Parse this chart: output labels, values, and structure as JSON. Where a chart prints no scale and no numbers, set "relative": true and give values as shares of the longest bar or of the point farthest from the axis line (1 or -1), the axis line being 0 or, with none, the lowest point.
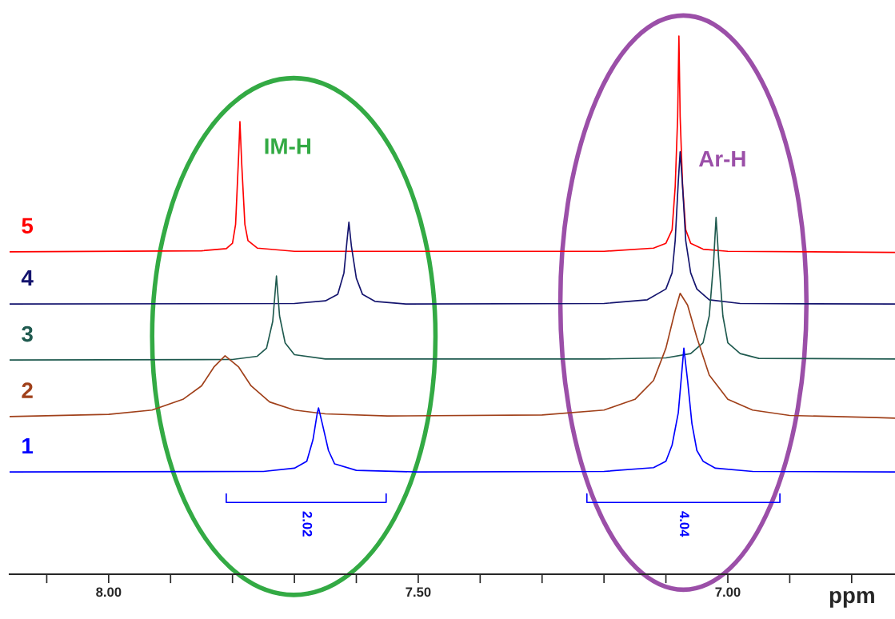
{
  "chart_data": {
    "type": "line",
    "relative": true,
    "xlabel": "ppm",
    "xlim": [
      8.16,
      6.73
    ],
    "xticks": [
      {
        "value": 8.1,
        "label": null
      },
      {
        "value": 8.0,
        "label": "8.00"
      },
      {
        "value": 7.9,
        "label": null
      },
      {
        "value": 7.8,
        "label": null
      },
      {
        "value": 7.7,
        "label": null
      },
      {
        "value": 7.6,
        "label": null
      },
      {
        "value": 7.5,
        "label": "7.50"
      },
      {
        "value": 7.4,
        "label": null
      },
      {
        "value": 7.3,
        "label": null
      },
      {
        "value": 7.2,
        "label": null
      },
      {
        "value": 7.1,
        "label": null
      },
      {
        "value": 7.0,
        "label": "7.00"
      },
      {
        "value": 6.9,
        "label": null
      },
      {
        "value": 6.8,
        "label": null
      }
    ],
    "tick_labels": "x",
    "grid": false,
    "legend": false,
    "marker": "none",
    "line_style": "solid",
    "annotations": [
      "IM-H",
      "Ar-H",
      "2.02",
      "4.04"
    ],
    "series": [
      {
        "name": "5",
        "color": "#ff0000",
        "x": [
          8.16,
          7.85,
          7.81,
          7.8,
          7.795,
          7.79,
          7.788,
          7.785,
          7.78,
          7.775,
          7.76,
          7.7,
          7.2,
          7.12,
          7.1,
          7.09,
          7.085,
          7.081,
          7.079,
          7.077,
          7.073,
          7.068,
          7.06,
          7.04,
          7.0,
          6.73
        ],
        "values": [
          0.599,
          0.601,
          0.605,
          0.615,
          0.65,
          0.78,
          0.841,
          0.76,
          0.65,
          0.62,
          0.606,
          0.6,
          0.6,
          0.606,
          0.615,
          0.64,
          0.72,
          0.85,
          1.0,
          0.85,
          0.72,
          0.64,
          0.615,
          0.604,
          0.6,
          0.598
        ]
      },
      {
        "name": "4",
        "color": "#14146e",
        "x": [
          8.16,
          7.7,
          7.65,
          7.63,
          7.62,
          7.615,
          7.612,
          7.608,
          7.6,
          7.59,
          7.57,
          7.52,
          7.2,
          7.13,
          7.1,
          7.09,
          7.085,
          7.08,
          7.077,
          7.073,
          7.068,
          7.06,
          7.05,
          7.03,
          6.98,
          6.73
        ],
        "values": [
          0.502,
          0.503,
          0.508,
          0.52,
          0.56,
          0.62,
          0.654,
          0.61,
          0.55,
          0.52,
          0.507,
          0.502,
          0.503,
          0.51,
          0.53,
          0.56,
          0.62,
          0.73,
          0.785,
          0.72,
          0.62,
          0.56,
          0.53,
          0.51,
          0.503,
          0.502
        ]
      },
      {
        "name": "3",
        "color": "#1f5a4f",
        "x": [
          8.16,
          7.8,
          7.76,
          7.745,
          7.735,
          7.729,
          7.724,
          7.715,
          7.7,
          7.65,
          7.2,
          7.1,
          7.06,
          7.04,
          7.03,
          7.023,
          7.019,
          7.015,
          7.008,
          7.0,
          6.98,
          6.95,
          6.73
        ],
        "values": [
          0.398,
          0.399,
          0.405,
          0.42,
          0.47,
          0.554,
          0.48,
          0.43,
          0.408,
          0.4,
          0.4,
          0.402,
          0.41,
          0.43,
          0.48,
          0.58,
          0.663,
          0.59,
          0.48,
          0.43,
          0.41,
          0.401,
          0.4
        ]
      },
      {
        "name": "2",
        "color": "#a0401a",
        "x": [
          8.16,
          8.0,
          7.93,
          7.88,
          7.85,
          7.83,
          7.812,
          7.79,
          7.77,
          7.74,
          7.7,
          7.65,
          7.55,
          7.3,
          7.2,
          7.15,
          7.12,
          7.1,
          7.085,
          7.077,
          7.065,
          7.05,
          7.03,
          7.0,
          6.96,
          6.9,
          6.76,
          6.73
        ],
        "values": [
          0.293,
          0.297,
          0.305,
          0.325,
          0.35,
          0.385,
          0.406,
          0.385,
          0.35,
          0.32,
          0.305,
          0.298,
          0.294,
          0.296,
          0.305,
          0.325,
          0.36,
          0.42,
          0.49,
          0.522,
          0.5,
          0.44,
          0.37,
          0.325,
          0.305,
          0.295,
          0.291,
          0.29
        ]
      },
      {
        "name": "1",
        "color": "#0000ff",
        "x": [
          8.16,
          7.75,
          7.7,
          7.68,
          7.67,
          7.663,
          7.661,
          7.655,
          7.645,
          7.635,
          7.6,
          7.5,
          7.2,
          7.12,
          7.1,
          7.09,
          7.08,
          7.071,
          7.065,
          7.058,
          7.05,
          7.04,
          7.02,
          6.96,
          6.73
        ],
        "values": [
          0.19,
          0.191,
          0.197,
          0.21,
          0.25,
          0.3,
          0.309,
          0.28,
          0.23,
          0.205,
          0.193,
          0.19,
          0.191,
          0.198,
          0.21,
          0.24,
          0.3,
          0.42,
          0.36,
          0.28,
          0.23,
          0.21,
          0.197,
          0.191,
          0.19
        ]
      }
    ]
  }
}
